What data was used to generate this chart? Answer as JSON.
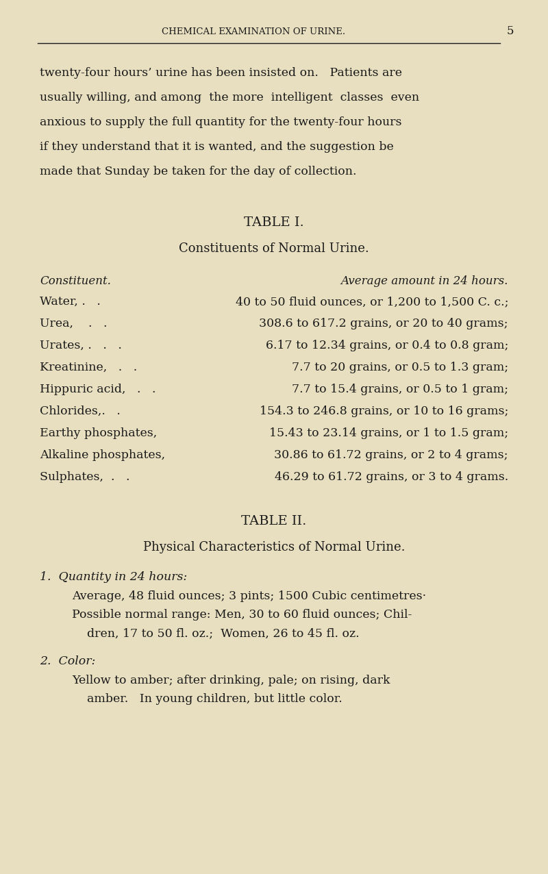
{
  "bg_color": "#e8dfc0",
  "text_color": "#1a1a1a",
  "page_header": "CHEMICAL EXAMINATION OF URINE.",
  "page_number": "5",
  "intro_lines": [
    "twenty-four hours’ urine has been insisted on.   Patients are",
    "usually willing, and among  the more  intelligent  classes  even",
    "anxious to supply the full quantity for the twenty-four hours",
    "if they understand that it is wanted, and the suggestion be",
    "made that Sunday be taken for the day of collection."
  ],
  "table1_title": "TABLE I.",
  "table1_subtitle": "Constituents of Normal Urine.",
  "table1_col1_header": "Constituent.",
  "table1_col2_header": "Average amount in 24 hours.",
  "table1_rows": [
    [
      "Water, .   .",
      "40 to 50 fluid ounces, or 1,200 to 1,500 C. c.;"
    ],
    [
      "Urea,    .   .",
      "308.6 to 617.2 grains, or 20 to 40 grams;"
    ],
    [
      "Urates, .   .   .",
      "6.17 to 12.34 grains, or 0.4 to 0.8 gram;"
    ],
    [
      "Kreatinine,   .   .",
      "7.7 to 20 grains, or 0.5 to 1.3 gram;"
    ],
    [
      "Hippuric acid,   .   .",
      "7.7 to 15.4 grains, or 0.5 to 1 gram;"
    ],
    [
      "Chlorides,.   .",
      "154.3 to 246.8 grains, or 10 to 16 grams;"
    ],
    [
      "Earthy phosphates,",
      "15.43 to 23.14 grains, or 1 to 1.5 gram;"
    ],
    [
      "Alkaline phosphates,",
      "30.86 to 61.72 grains, or 2 to 4 grams;"
    ],
    [
      "Sulphates,  .   .",
      "46.29 to 61.72 grains, or 3 to 4 grams."
    ]
  ],
  "table2_title": "TABLE II.",
  "table2_subtitle": "Physical Characteristics of Normal Urine.",
  "table2_item1_label": "1.  Quantity in 24 hours:",
  "table2_item1_lines": [
    "Average, 48 fluid ounces; 3 pints; 1500 Cubic centimetres·",
    "Possible normal range: Men, 30 to 60 fluid ounces; Chil-",
    "    dren, 17 to 50 fl. oz.;  Women, 26 to 45 fl. oz."
  ],
  "table2_item2_label": "2.  Color:",
  "table2_item2_lines": [
    "Yellow to amber; after drinking, pale; on rising, dark",
    "    amber.   In young children, but little color."
  ]
}
